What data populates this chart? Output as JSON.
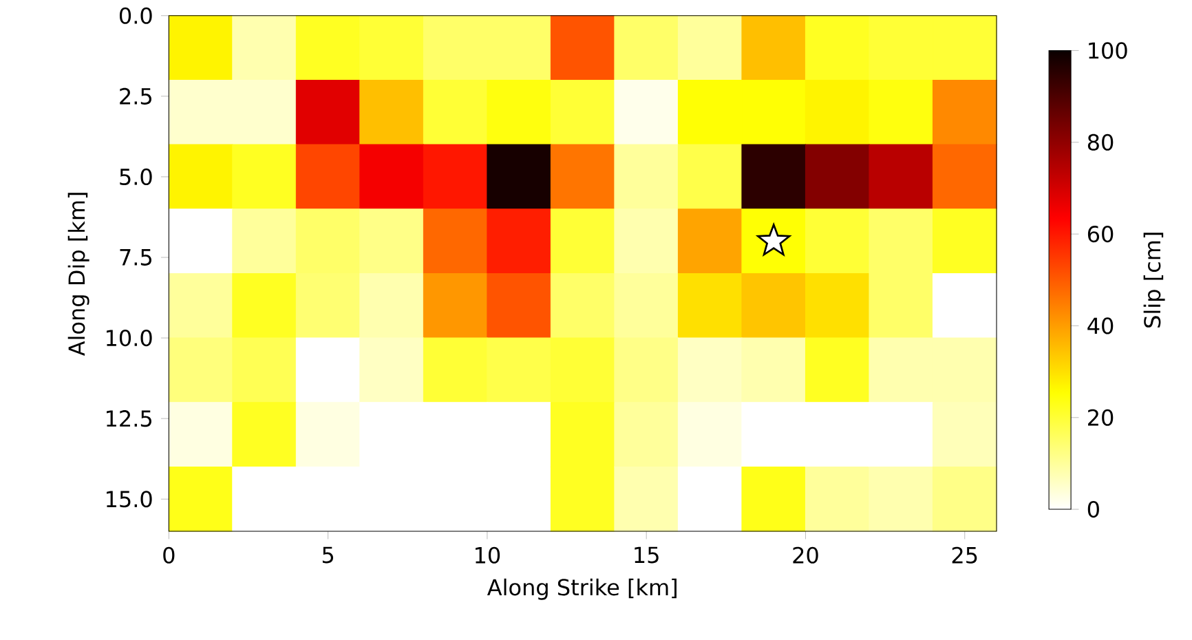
{
  "chart_data": {
    "type": "heatmap",
    "xlabel": "Along Strike [km]",
    "ylabel": "Along Dip [km]",
    "clabel": "Slip [cm]",
    "x": [
      1,
      3,
      5,
      7,
      9,
      11,
      13,
      15,
      17,
      19,
      21,
      23,
      25
    ],
    "y": [
      1,
      3,
      5,
      7,
      9,
      11,
      13,
      15
    ],
    "xlim": [
      0,
      26
    ],
    "xticks": [
      0,
      5,
      10,
      15,
      20,
      25
    ],
    "ylim": [
      16,
      0
    ],
    "yticks": [
      {
        "value": 0,
        "label": "0.0"
      },
      {
        "value": 2.5,
        "label": "2.5"
      },
      {
        "value": 5,
        "label": "5.0"
      },
      {
        "value": 7.5,
        "label": "7.5"
      },
      {
        "value": 10,
        "label": "10.0"
      },
      {
        "value": 12.5,
        "label": "12.5"
      },
      {
        "value": 15,
        "label": "15.0"
      }
    ],
    "clim": [
      0,
      100
    ],
    "cticks": [
      0,
      20,
      40,
      60,
      80,
      100
    ],
    "cells": [
      [
        27,
        8,
        22,
        20,
        15,
        15,
        51,
        15,
        10,
        35,
        22,
        20,
        20
      ],
      [
        5,
        5,
        68,
        35,
        20,
        24,
        20,
        2,
        25,
        25,
        27,
        24,
        43
      ],
      [
        27,
        22,
        53,
        65,
        60,
        98,
        46,
        10,
        18,
        95,
        82,
        74,
        48
      ],
      [
        0,
        10,
        15,
        12,
        48,
        59,
        20,
        8,
        39,
        25,
        20,
        15,
        22
      ],
      [
        10,
        22,
        14,
        8,
        41,
        51,
        15,
        10,
        30,
        34,
        30,
        15,
        0
      ],
      [
        13,
        17,
        0,
        6,
        20,
        18,
        20,
        12,
        6,
        8,
        22,
        8,
        8
      ],
      [
        3,
        22,
        3,
        0,
        0,
        0,
        22,
        10,
        3,
        0,
        0,
        0,
        7
      ],
      [
        23,
        0,
        0,
        0,
        0,
        0,
        22,
        8,
        0,
        23,
        10,
        8,
        12
      ]
    ],
    "series": [
      {
        "type": "scatter",
        "x": [
          19
        ],
        "values": [
          7
        ],
        "color": "#ffffff"
      }
    ],
    "marker": "star"
  }
}
